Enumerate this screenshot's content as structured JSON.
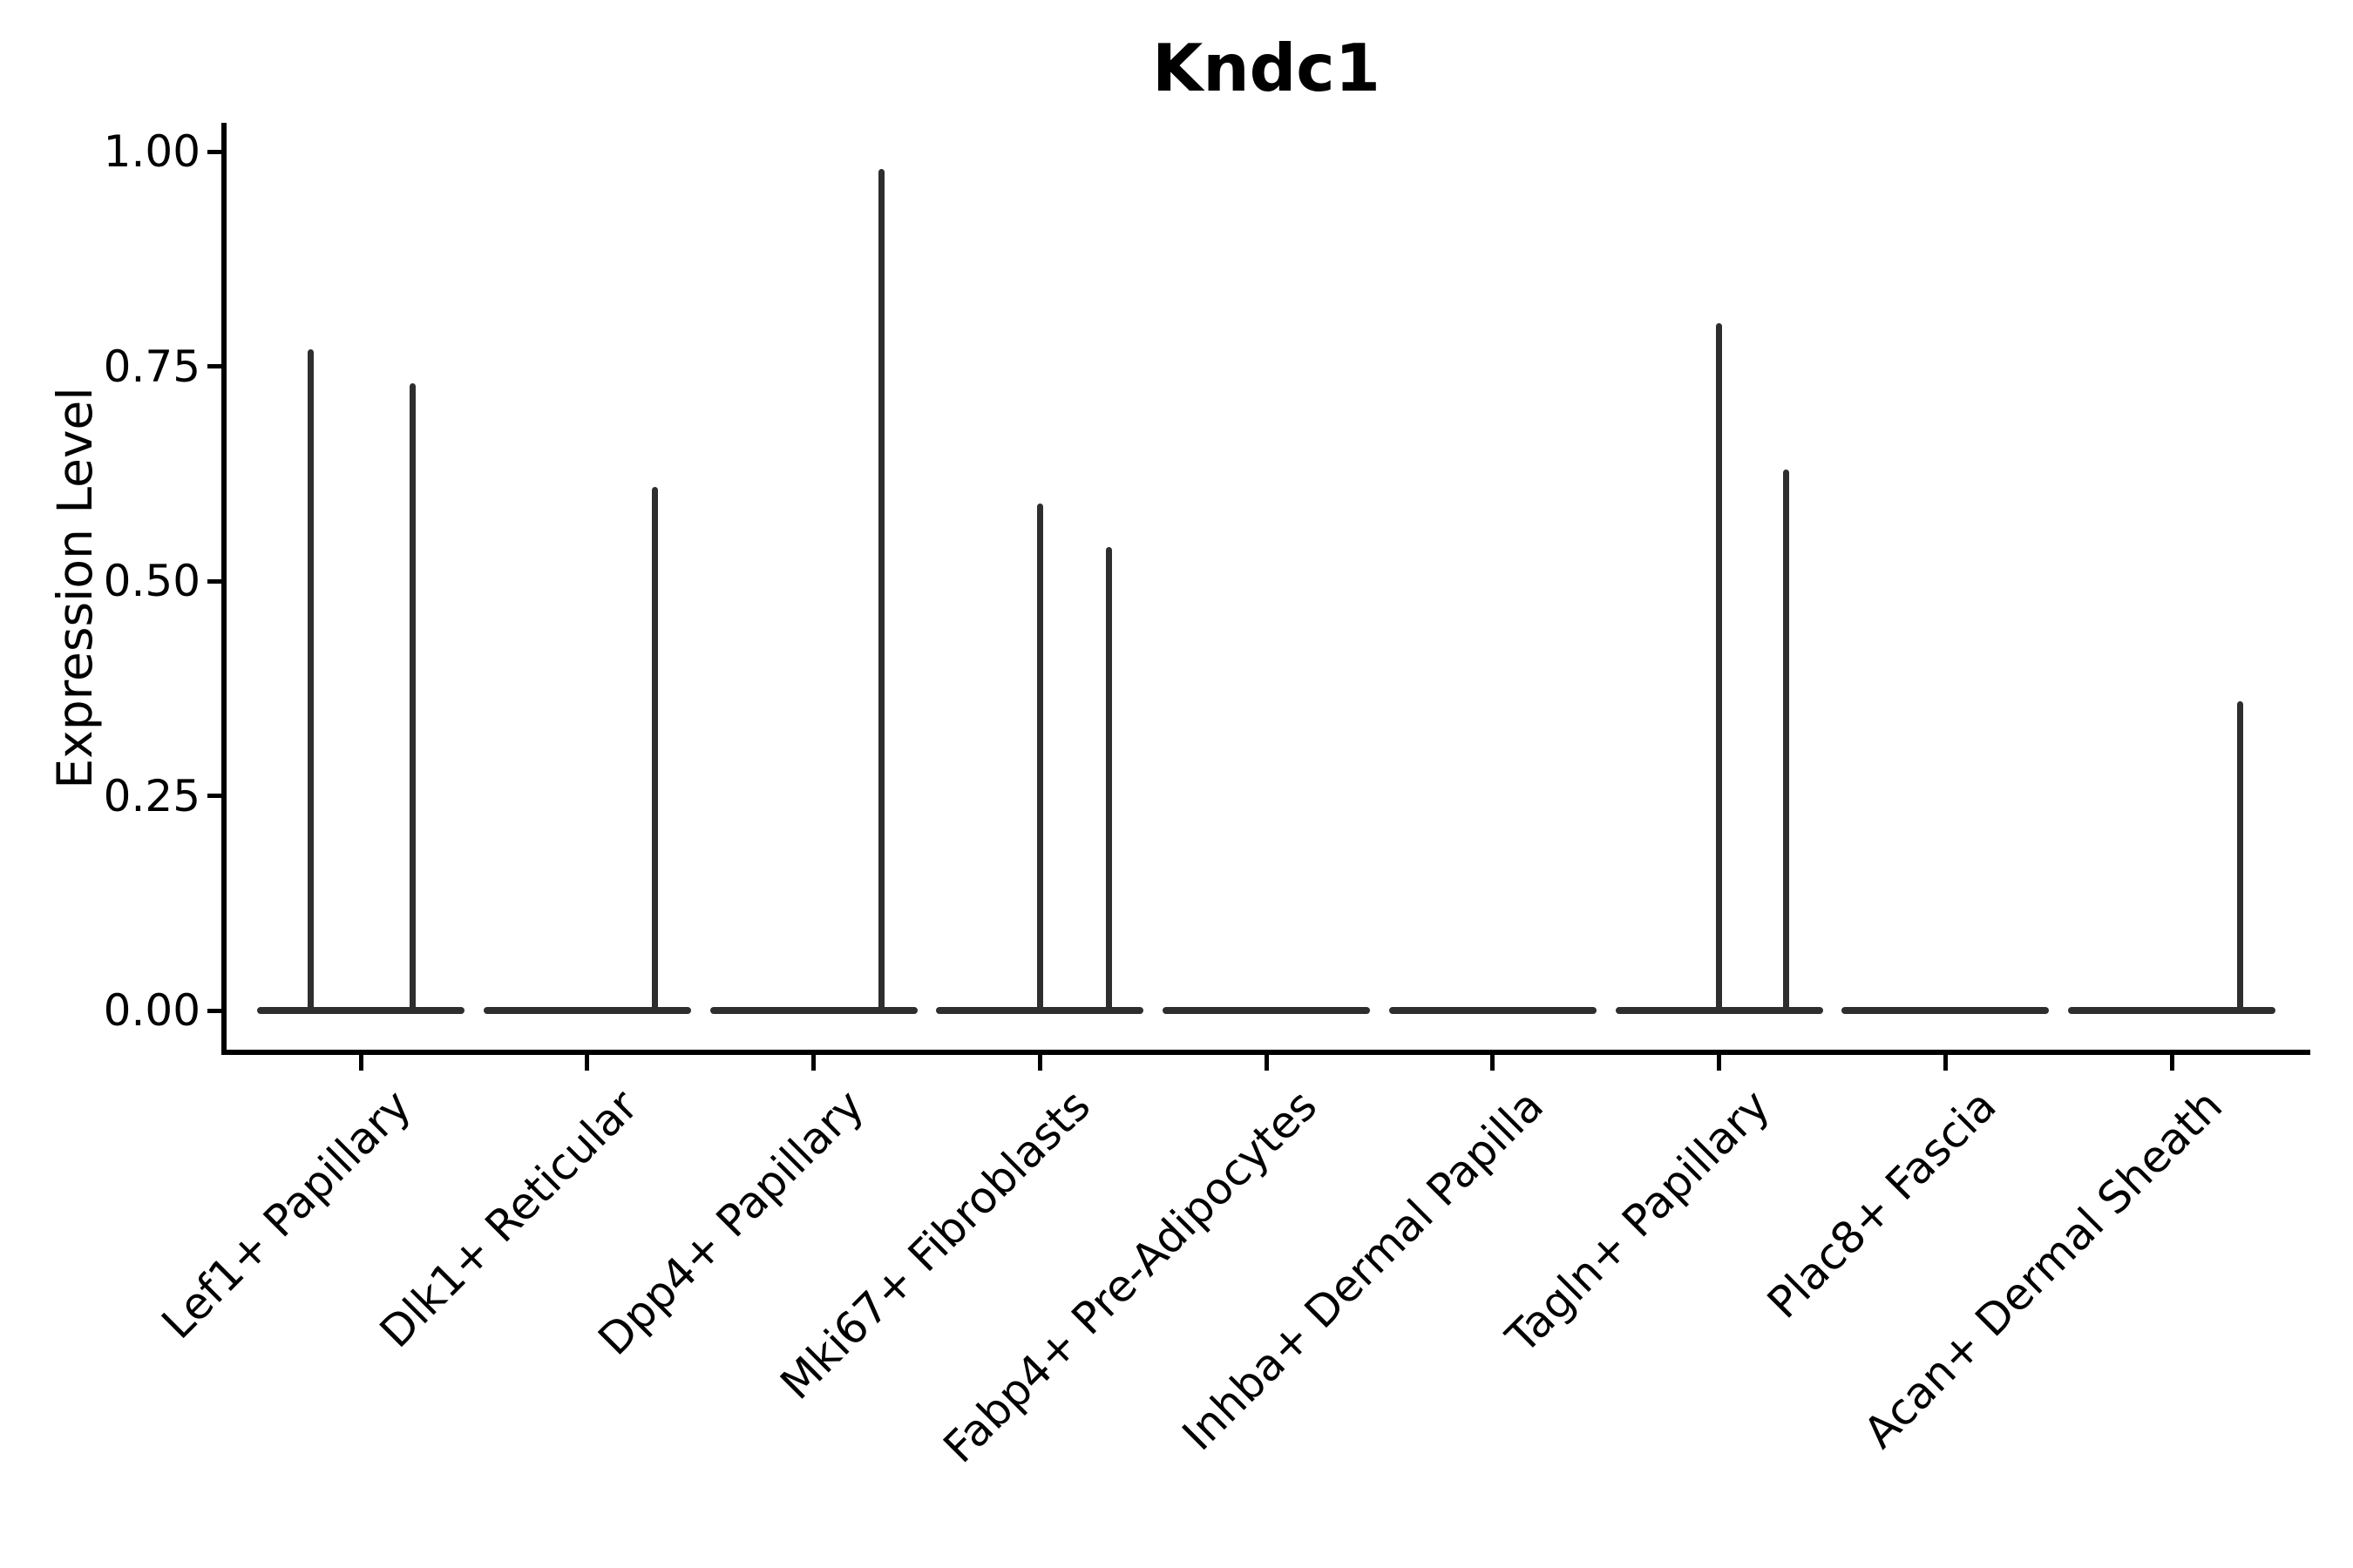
{
  "chart_data": {
    "type": "violin",
    "title": "Kndc1",
    "ylabel": "Expression Level",
    "xlabel": "",
    "ylim": [
      0.0,
      1.0
    ],
    "grid": false,
    "legend": "none",
    "yticks": [
      {
        "value": 1.0,
        "label": "1.00"
      },
      {
        "value": 0.75,
        "label": "0.75"
      },
      {
        "value": 0.5,
        "label": "0.50"
      },
      {
        "value": 0.25,
        "label": "0.25"
      },
      {
        "value": 0.0,
        "label": "0.00"
      }
    ],
    "categories": [
      "Lef1+ Papillary",
      "Dlk1+ Reticular",
      "Dpp4+ Papillary",
      "Mki67+ Fibroblasts",
      "Fabp4+ Pre-Adipocytes",
      "Inhba+ Dermal Papilla",
      "Tagln+ Papillary",
      "Plac8+ Fascia",
      "Acan+ Dermal Sheath"
    ],
    "groups": [
      {
        "label": "Lef1+ Papillary",
        "baseline_value": 0.0,
        "spikes": [
          {
            "dx": -58,
            "peak": 0.77
          },
          {
            "dx": 59,
            "peak": 0.73
          }
        ]
      },
      {
        "label": "Dlk1+ Reticular",
        "baseline_value": 0.0,
        "spikes": [
          {
            "dx": 78,
            "peak": 0.61
          }
        ]
      },
      {
        "label": "Dpp4+ Papillary",
        "baseline_value": 0.0,
        "spikes": [
          {
            "dx": 78,
            "peak": 0.98
          }
        ]
      },
      {
        "label": "Mki67+ Fibroblasts",
        "baseline_value": 0.0,
        "spikes": [
          {
            "dx": 0,
            "peak": 0.59
          },
          {
            "dx": 79,
            "peak": 0.54
          }
        ]
      },
      {
        "label": "Fabp4+ Pre-Adipocytes",
        "baseline_value": 0.0,
        "spikes": []
      },
      {
        "label": "Inhba+ Dermal Papilla",
        "baseline_value": 0.0,
        "spikes": []
      },
      {
        "label": "Tagln+ Papillary",
        "baseline_value": 0.0,
        "spikes": [
          {
            "dx": 0,
            "peak": 0.8
          },
          {
            "dx": 77,
            "peak": 0.63
          }
        ]
      },
      {
        "label": "Plac8+ Fascia",
        "baseline_value": 0.0,
        "spikes": []
      },
      {
        "label": "Acan+ Dermal Sheath",
        "baseline_value": 0.0,
        "spikes": [
          {
            "dx": 78,
            "peak": 0.36
          }
        ]
      }
    ]
  },
  "colors": {
    "violin_line": "#2e2e2e",
    "axis": "#000000",
    "text": "#000000",
    "background": "#ffffff"
  }
}
